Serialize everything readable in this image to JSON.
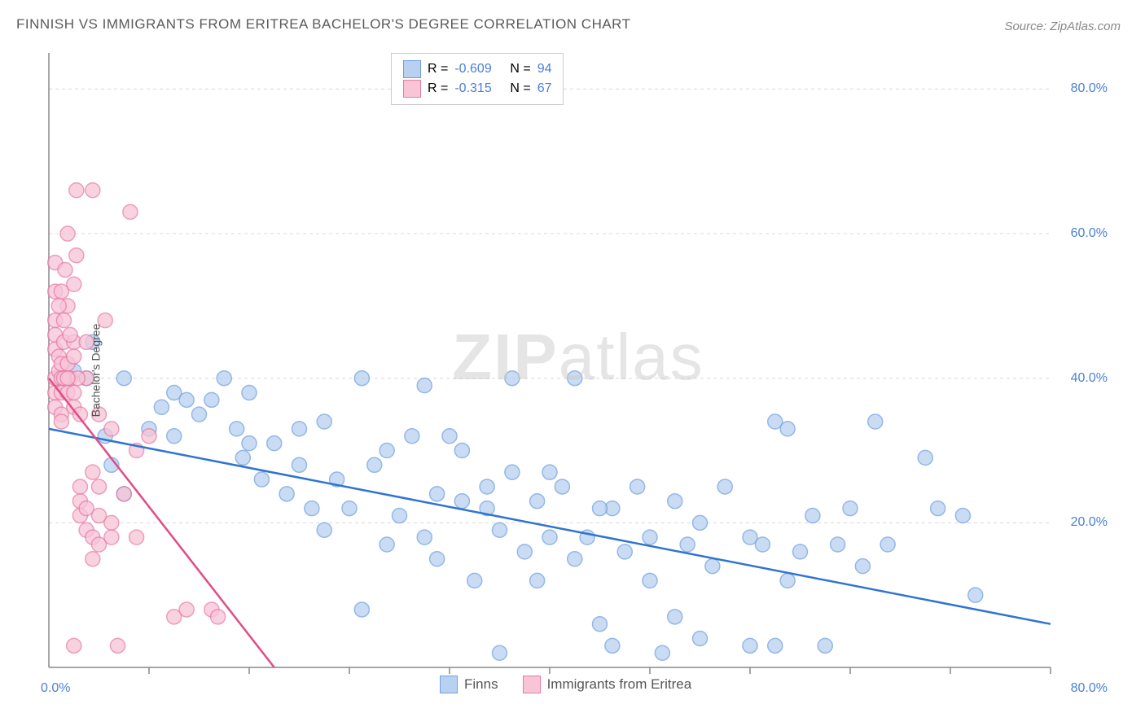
{
  "title": "FINNISH VS IMMIGRANTS FROM ERITREA BACHELOR'S DEGREE CORRELATION CHART",
  "source": "Source: ZipAtlas.com",
  "ylabel": "Bachelor's Degree",
  "watermark_a": "ZIP",
  "watermark_b": "atlas",
  "chart": {
    "type": "scatter",
    "xlim": [
      0,
      80
    ],
    "ylim": [
      0,
      85
    ],
    "background_color": "#ffffff",
    "grid_color": "#d8d8d8",
    "grid_style": "dashed",
    "axis_color": "#888888",
    "yticks": [
      20,
      40,
      60,
      80
    ],
    "ytick_labels": [
      "20.0%",
      "40.0%",
      "60.0%",
      "80.0%"
    ],
    "y_tick_color": "#4a7fd8",
    "x_start_label": "0.0%",
    "x_end_label": "80.0%",
    "x_label_color": "#4a7fd8",
    "xticks_minor": [
      8,
      16,
      24,
      32,
      40,
      48,
      56,
      64,
      72,
      80
    ],
    "series": [
      {
        "name": "Finns",
        "marker_color_fill": "#b9d1f0",
        "marker_color_stroke": "#6fa0de",
        "marker_opacity": 0.75,
        "marker_radius": 9,
        "line_color": "#2f74d0",
        "line_width": 2.5,
        "R": "-0.609",
        "N": "94",
        "regression": {
          "x1": 0,
          "y1": 33,
          "x2": 80,
          "y2": 6
        },
        "points": [
          [
            2,
            41
          ],
          [
            3,
            40
          ],
          [
            3.5,
            45
          ],
          [
            4.5,
            32
          ],
          [
            5,
            28
          ],
          [
            6,
            40
          ],
          [
            6,
            24
          ],
          [
            8,
            33
          ],
          [
            9,
            36
          ],
          [
            10,
            32
          ],
          [
            10,
            38
          ],
          [
            11,
            37
          ],
          [
            12,
            35
          ],
          [
            13,
            37
          ],
          [
            14,
            40
          ],
          [
            15,
            33
          ],
          [
            15.5,
            29
          ],
          [
            16,
            31
          ],
          [
            16,
            38
          ],
          [
            17,
            26
          ],
          [
            18,
            31
          ],
          [
            19,
            24
          ],
          [
            20,
            33
          ],
          [
            20,
            28
          ],
          [
            21,
            22
          ],
          [
            22,
            34
          ],
          [
            22,
            19
          ],
          [
            23,
            26
          ],
          [
            24,
            22
          ],
          [
            25,
            40
          ],
          [
            25,
            8
          ],
          [
            26,
            28
          ],
          [
            27,
            30
          ],
          [
            27,
            17
          ],
          [
            28,
            21
          ],
          [
            29,
            32
          ],
          [
            30,
            39
          ],
          [
            30,
            18
          ],
          [
            31,
            24
          ],
          [
            31,
            15
          ],
          [
            32,
            32
          ],
          [
            33,
            23
          ],
          [
            33,
            30
          ],
          [
            34,
            12
          ],
          [
            35,
            25
          ],
          [
            35,
            22
          ],
          [
            36,
            19
          ],
          [
            36,
            2
          ],
          [
            37,
            40
          ],
          [
            38,
            16
          ],
          [
            39,
            23
          ],
          [
            39,
            12
          ],
          [
            40,
            18
          ],
          [
            40,
            27
          ],
          [
            41,
            25
          ],
          [
            42,
            15
          ],
          [
            42,
            40
          ],
          [
            43,
            18
          ],
          [
            44,
            6
          ],
          [
            45,
            22
          ],
          [
            45,
            3
          ],
          [
            46,
            16
          ],
          [
            47,
            25
          ],
          [
            48,
            18
          ],
          [
            48,
            12
          ],
          [
            49,
            2
          ],
          [
            50,
            23
          ],
          [
            51,
            17
          ],
          [
            52,
            20
          ],
          [
            52,
            4
          ],
          [
            53,
            14
          ],
          [
            54,
            25
          ],
          [
            56,
            18
          ],
          [
            56,
            3
          ],
          [
            57,
            17
          ],
          [
            58,
            34
          ],
          [
            58,
            3
          ],
          [
            59,
            33
          ],
          [
            60,
            16
          ],
          [
            61,
            21
          ],
          [
            62,
            3
          ],
          [
            63,
            17
          ],
          [
            64,
            22
          ],
          [
            65,
            14
          ],
          [
            66,
            34
          ],
          [
            67,
            17
          ],
          [
            70,
            29
          ],
          [
            71,
            22
          ],
          [
            73,
            21
          ],
          [
            74,
            10
          ],
          [
            59,
            12
          ],
          [
            50,
            7
          ],
          [
            44,
            22
          ],
          [
            37,
            27
          ]
        ]
      },
      {
        "name": "Immigrants from Eritrea",
        "marker_color_fill": "#f8c4d6",
        "marker_color_stroke": "#e87ba4",
        "marker_opacity": 0.75,
        "marker_radius": 9,
        "line_color": "#e24b86",
        "line_width": 2.5,
        "R": "-0.315",
        "N": "67",
        "regression": {
          "x1": 0,
          "y1": 40,
          "x2": 18,
          "y2": 0
        },
        "regression_dash_after": {
          "x1": 18,
          "y1": 0,
          "x2": 22,
          "y2": -9
        },
        "points": [
          [
            0.5,
            40
          ],
          [
            0.5,
            38
          ],
          [
            0.5,
            36
          ],
          [
            0.5,
            44
          ],
          [
            0.5,
            48
          ],
          [
            0.5,
            52
          ],
          [
            0.5,
            56
          ],
          [
            0.5,
            46
          ],
          [
            0.8,
            41
          ],
          [
            0.8,
            43
          ],
          [
            1,
            40
          ],
          [
            1,
            38
          ],
          [
            1,
            35
          ],
          [
            1,
            42
          ],
          [
            1,
            34
          ],
          [
            1,
            52
          ],
          [
            1.2,
            48
          ],
          [
            1.2,
            45
          ],
          [
            1.3,
            55
          ],
          [
            1.5,
            50
          ],
          [
            1.5,
            38
          ],
          [
            1.5,
            42
          ],
          [
            1.5,
            60
          ],
          [
            1.7,
            40
          ],
          [
            2,
            45
          ],
          [
            2,
            36
          ],
          [
            2,
            43
          ],
          [
            2,
            38
          ],
          [
            2,
            53
          ],
          [
            2.2,
            57
          ],
          [
            2.2,
            66
          ],
          [
            2.5,
            25
          ],
          [
            2.5,
            23
          ],
          [
            2.5,
            21
          ],
          [
            2.5,
            35
          ],
          [
            3,
            19
          ],
          [
            3,
            22
          ],
          [
            3,
            40
          ],
          [
            3,
            45
          ],
          [
            3.5,
            27
          ],
          [
            3.5,
            18
          ],
          [
            3.5,
            15
          ],
          [
            3.5,
            66
          ],
          [
            4,
            21
          ],
          [
            4,
            17
          ],
          [
            4,
            35
          ],
          [
            4,
            25
          ],
          [
            4.5,
            48
          ],
          [
            5,
            20
          ],
          [
            5,
            33
          ],
          [
            5,
            18
          ],
          [
            5.5,
            3
          ],
          [
            6,
            24
          ],
          [
            6.5,
            63
          ],
          [
            7,
            18
          ],
          [
            7,
            30
          ],
          [
            8,
            32
          ],
          [
            10,
            7
          ],
          [
            11,
            8
          ],
          [
            13,
            8
          ],
          [
            13.5,
            7
          ],
          [
            2,
            3
          ],
          [
            1.2,
            40
          ],
          [
            1.7,
            46
          ],
          [
            2.3,
            40
          ],
          [
            0.8,
            50
          ],
          [
            1.5,
            40
          ]
        ]
      }
    ]
  },
  "legend_top": {
    "r_label": "R =",
    "n_label": "N ="
  },
  "legend_bottom": {
    "series1": "Finns",
    "series2": "Immigrants from Eritrea"
  }
}
